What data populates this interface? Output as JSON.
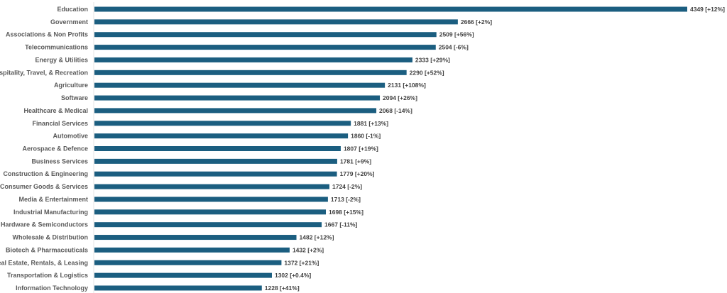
{
  "chart_data": {
    "type": "bar",
    "orientation": "horizontal",
    "title": "",
    "xlabel": "",
    "ylabel": "",
    "bar_color": "#1b5e80",
    "xlim": [
      0,
      4349
    ],
    "grid": false,
    "categories": [
      "Education",
      "Government",
      "Associations & Non Profits",
      "Telecommunications",
      "Energy & Utilities",
      "Hospitality, Travel, & Recreation",
      "Agriculture",
      "Software",
      "Healthcare & Medical",
      "Financial Services",
      "Automotive",
      "Aerospace & Defence",
      "Business Services",
      "Construction & Engineering",
      "Consumer Goods & Services",
      "Media & Entertainment",
      "Industrial Manufacturing",
      "Hardware & Semiconductors",
      "Wholesale & Distribution",
      "Biotech & Pharmaceuticals",
      "Real Estate, Rentals, & Leasing",
      "Transportation & Logistics",
      "Information Technology"
    ],
    "values": [
      4349,
      2666,
      2509,
      2504,
      2333,
      2290,
      2131,
      2094,
      2068,
      1881,
      1860,
      1807,
      1781,
      1779,
      1724,
      1713,
      1698,
      1667,
      1482,
      1432,
      1372,
      1302,
      1228
    ],
    "data_labels": [
      "4349 [+12%]",
      "2666 [+2%]",
      "2509 [+56%]",
      "2504 [-6%]",
      "2333 [+29%]",
      "2290 [+52%]",
      "2131 [+108%]",
      "2094 [+26%]",
      "2068 [-14%]",
      "1881 [+13%]",
      "1860 [-1%]",
      "1807 [+19%]",
      "1781 [+9%]",
      "1779 [+20%]",
      "1724 [-2%]",
      "1713 [-2%]",
      "1698 [+15%]",
      "1667 [-11%]",
      "1482 [+12%]",
      "1432 [+2%]",
      "1372 [+21%]",
      "1302 [+0.4%]",
      "1228 [+41%]"
    ]
  }
}
